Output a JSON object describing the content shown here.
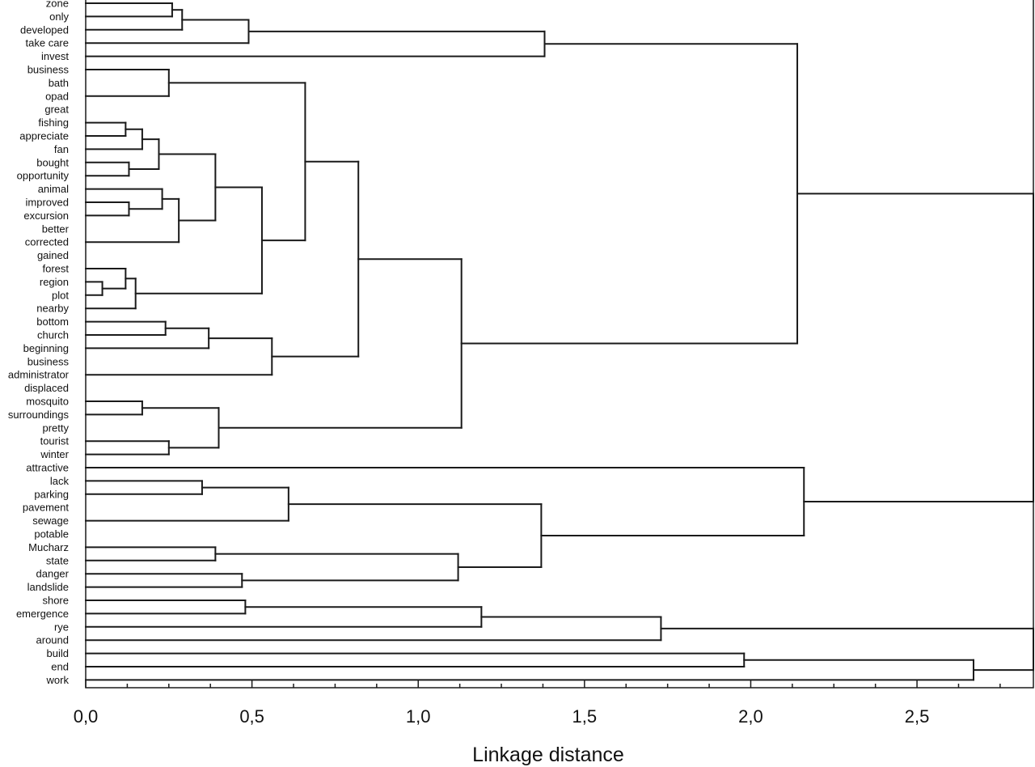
{
  "chart_data": {
    "type": "dendrogram",
    "orientation": "horizontal",
    "xlabel": "Linkage distance",
    "xlim": [
      0,
      2.85
    ],
    "x_ticks": [
      {
        "value": 0.0,
        "label": "0,0"
      },
      {
        "value": 0.5,
        "label": "0,5"
      },
      {
        "value": 1.0,
        "label": "1,0"
      },
      {
        "value": 1.5,
        "label": "1,5"
      },
      {
        "value": 2.0,
        "label": "2,0"
      },
      {
        "value": 2.5,
        "label": "2,5"
      }
    ],
    "minor_tick_step": 0.125,
    "leaves": [
      "zone",
      "only",
      "developed",
      "take care",
      "invest",
      "business",
      "bath",
      "opad",
      "great",
      "fishing",
      "appreciate",
      "fan",
      "bought",
      "opportunity",
      "animal",
      "improved",
      "excursion",
      "better",
      "corrected",
      "gained",
      "forest",
      "region",
      "plot",
      "nearby",
      "bottom",
      "church",
      "beginning",
      "business",
      "administrator",
      "displaced",
      "mosquito",
      "surroundings",
      "pretty",
      "tourist",
      "winter",
      "attractive",
      "lack",
      "parking",
      "pavement",
      "sewage",
      "potable",
      "Mucharz",
      "state",
      "danger",
      "landslide",
      "shore",
      "emergence",
      "rye",
      "around",
      "build",
      "end",
      "work"
    ],
    "merges": [
      {
        "id": "m1",
        "a": "L0",
        "b": "L1",
        "distance": 0.26
      },
      {
        "id": "m2",
        "a": "m1",
        "b": "L2",
        "distance": 0.29
      },
      {
        "id": "m3",
        "a": "m2",
        "b": "L3",
        "distance": 0.49
      },
      {
        "id": "m4",
        "a": "m3",
        "b": "L4",
        "distance": 1.38
      },
      {
        "id": "m5",
        "a": "L5",
        "b": "L7",
        "distance": 0.25
      },
      {
        "id": "m6",
        "a": "L9",
        "b": "L10",
        "distance": 0.12
      },
      {
        "id": "m7",
        "a": "m6",
        "b": "L11",
        "distance": 0.17
      },
      {
        "id": "m8",
        "a": "L12",
        "b": "L13",
        "distance": 0.13
      },
      {
        "id": "m9",
        "a": "m7",
        "b": "m8",
        "distance": 0.22
      },
      {
        "id": "m10",
        "a": "L15",
        "b": "L16",
        "distance": 0.13
      },
      {
        "id": "m11",
        "a": "L14",
        "b": "m10",
        "distance": 0.23
      },
      {
        "id": "m12",
        "a": "m11",
        "b": "L18",
        "distance": 0.28
      },
      {
        "id": "m13",
        "a": "m9",
        "b": "m12",
        "distance": 0.39
      },
      {
        "id": "m14",
        "a": "L21",
        "b": "L22",
        "distance": 0.05
      },
      {
        "id": "m15",
        "a": "L20",
        "b": "m14",
        "distance": 0.12
      },
      {
        "id": "m16",
        "a": "m15",
        "b": "L23",
        "distance": 0.15
      },
      {
        "id": "m17",
        "a": "m13",
        "b": "m16",
        "distance": 0.53
      },
      {
        "id": "m18",
        "a": "m5",
        "b": "m17",
        "distance": 0.66
      },
      {
        "id": "m19",
        "a": "L24",
        "b": "L25",
        "distance": 0.24
      },
      {
        "id": "m20",
        "a": "m19",
        "b": "L26",
        "distance": 0.37
      },
      {
        "id": "m21",
        "a": "m20",
        "b": "L28",
        "distance": 0.56
      },
      {
        "id": "m22",
        "a": "m18",
        "b": "m21",
        "distance": 0.82
      },
      {
        "id": "m23",
        "a": "L30",
        "b": "L31",
        "distance": 0.17
      },
      {
        "id": "m24",
        "a": "L33",
        "b": "L34",
        "distance": 0.25
      },
      {
        "id": "m25",
        "a": "m23",
        "b": "m24",
        "distance": 0.4
      },
      {
        "id": "m26",
        "a": "m22",
        "b": "m25",
        "distance": 1.13
      },
      {
        "id": "m27",
        "a": "m4",
        "b": "m26",
        "distance": 2.14
      },
      {
        "id": "m28",
        "a": "L36",
        "b": "L37",
        "distance": 0.35
      },
      {
        "id": "m29",
        "a": "m28",
        "b": "L39",
        "distance": 0.61
      },
      {
        "id": "m30",
        "a": "L41",
        "b": "L42",
        "distance": 0.39
      },
      {
        "id": "m31",
        "a": "L43",
        "b": "L44",
        "distance": 0.47
      },
      {
        "id": "m32",
        "a": "m30",
        "b": "m31",
        "distance": 1.12
      },
      {
        "id": "m33",
        "a": "m29",
        "b": "m32",
        "distance": 1.37
      },
      {
        "id": "m34",
        "a": "L35",
        "b": "m33",
        "distance": 2.16
      },
      {
        "id": "m35",
        "a": "L45",
        "b": "L46",
        "distance": 0.48
      },
      {
        "id": "m36",
        "a": "m35",
        "b": "L47",
        "distance": 1.19
      },
      {
        "id": "m37",
        "a": "m36",
        "b": "L48",
        "distance": 1.73
      },
      {
        "id": "m38",
        "a": "L49",
        "b": "L50",
        "distance": 1.98
      },
      {
        "id": "m39",
        "a": "m38",
        "b": "L51",
        "distance": 2.67
      },
      {
        "id": "m40",
        "a": "m27",
        "b": "m34",
        "distance": 2.85
      },
      {
        "id": "m41",
        "a": "m37",
        "b": "m39",
        "distance": 2.85
      }
    ]
  }
}
